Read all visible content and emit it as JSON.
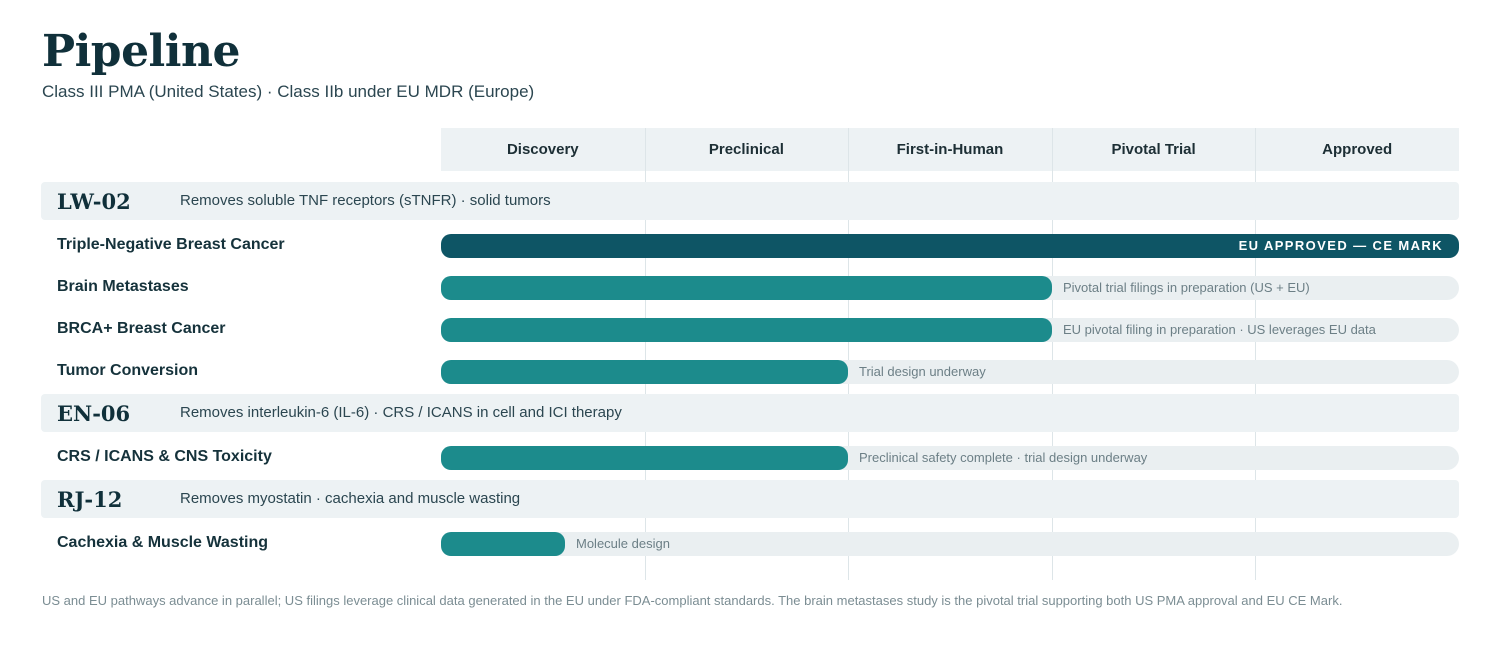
{
  "header": {
    "title": "Pipeline",
    "subtitle": "Class III PMA (United States)  ·  Class IIb under EU MDR (Europe)"
  },
  "colors": {
    "approved": "#0e5565",
    "in_progress": "#1c8b8c",
    "track": "#eaeff1",
    "band": "#edf2f4"
  },
  "chart_data": {
    "type": "bar",
    "orientation": "horizontal",
    "stages": [
      "Discovery",
      "Preclinical",
      "First-in-Human",
      "Pivotal Trial",
      "Approved"
    ],
    "programs": [
      {
        "code": "LW-02",
        "description": "Removes soluble TNF receptors (sTNFR)  ·  solid tumors",
        "indications": [
          {
            "name": "Triple-Negative Breast Cancer",
            "progress_stages": 5,
            "inner_label": "EU APPROVED — CE MARK",
            "status": "",
            "approved": true
          },
          {
            "name": "Brain Metastases",
            "progress_stages": 3,
            "status": "Pivotal trial filings in preparation (US + EU)",
            "approved": false
          },
          {
            "name": "BRCA+ Breast Cancer",
            "progress_stages": 3,
            "status": "EU pivotal filing in preparation · US leverages EU data",
            "approved": false
          },
          {
            "name": "Tumor Conversion",
            "progress_stages": 2,
            "status": "Trial design underway",
            "approved": false
          }
        ]
      },
      {
        "code": "EN-06",
        "description": "Removes interleukin-6 (IL-6)  ·  CRS / ICANS in cell and ICI therapy",
        "indications": [
          {
            "name": "CRS / ICANS & CNS Toxicity",
            "progress_stages": 2,
            "status": "Preclinical safety complete · trial design underway",
            "approved": false
          }
        ]
      },
      {
        "code": "RJ-12",
        "description": "Removes myostatin  ·  cachexia and muscle wasting",
        "indications": [
          {
            "name": "Cachexia & Muscle Wasting",
            "progress_stages": 0.61,
            "status": "Molecule design",
            "approved": false
          }
        ]
      }
    ]
  },
  "footnote": "US and EU pathways advance in parallel; US filings leverage clinical data generated in the EU under FDA-compliant standards. The brain metastases study is the pivotal trial supporting both US PMA approval and EU CE Mark."
}
